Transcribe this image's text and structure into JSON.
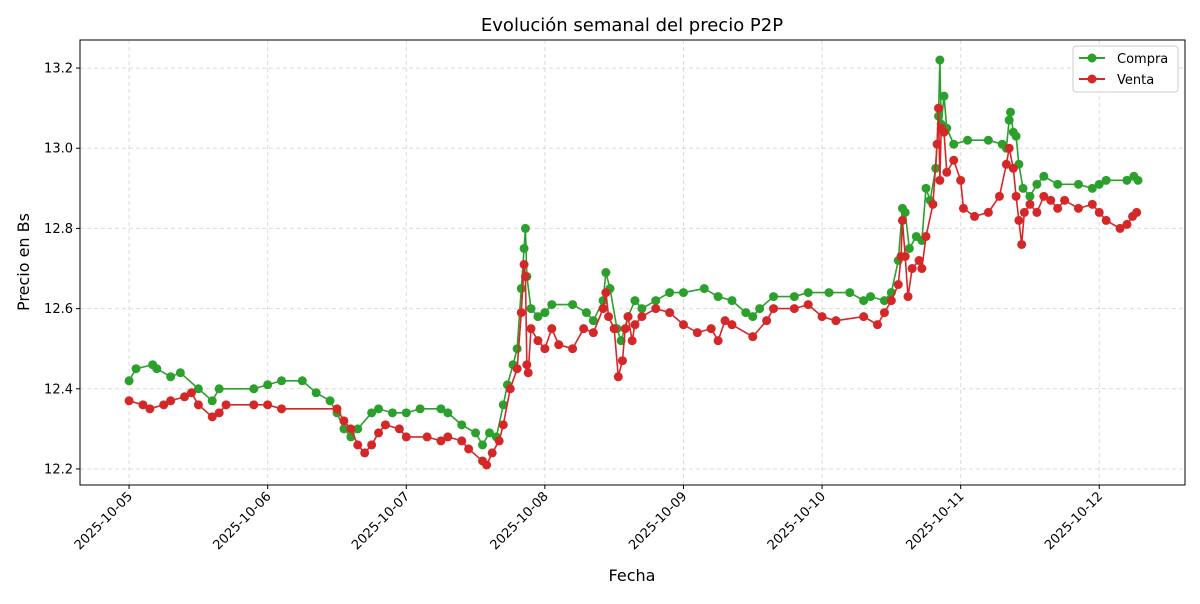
{
  "chart_data": {
    "type": "line",
    "title": "Evolución semanal del precio P2P",
    "xlabel": "Fecha",
    "ylabel": "Precio en Bs",
    "xlim": [
      "2025-10-04T15:30",
      "2025-10-12T14:51"
    ],
    "ylim": [
      12.16,
      13.27
    ],
    "x_ticks": [
      "2025-10-05",
      "2025-10-06",
      "2025-10-07",
      "2025-10-08",
      "2025-10-09",
      "2025-10-10",
      "2025-10-11",
      "2025-10-12"
    ],
    "y_ticks": [
      "12.2",
      "12.4",
      "12.6",
      "12.8",
      "13.0",
      "13.2"
    ],
    "grid": true,
    "legend_position": "top-right",
    "series": [
      {
        "name": "Compra",
        "color": "#2ca02c",
        "points": [
          [
            "2025-10-05T00:00",
            12.42
          ],
          [
            "2025-10-05T01:12",
            12.45
          ],
          [
            "2025-10-05T04:05",
            12.46
          ],
          [
            "2025-10-05T04:48",
            12.45
          ],
          [
            "2025-10-05T07:12",
            12.43
          ],
          [
            "2025-10-05T08:53",
            12.44
          ],
          [
            "2025-10-05T12:00",
            12.4
          ],
          [
            "2025-10-05T14:24",
            12.37
          ],
          [
            "2025-10-05T15:36",
            12.4
          ],
          [
            "2025-10-05T21:36",
            12.4
          ],
          [
            "2025-10-06T00:00",
            12.41
          ],
          [
            "2025-10-06T02:24",
            12.42
          ],
          [
            "2025-10-06T06:00",
            12.42
          ],
          [
            "2025-10-06T08:24",
            12.39
          ],
          [
            "2025-10-06T10:48",
            12.37
          ],
          [
            "2025-10-06T12:00",
            12.34
          ],
          [
            "2025-10-06T13:12",
            12.3
          ],
          [
            "2025-10-06T14:24",
            12.28
          ],
          [
            "2025-10-06T15:36",
            12.3
          ],
          [
            "2025-10-06T18:00",
            12.34
          ],
          [
            "2025-10-06T19:12",
            12.35
          ],
          [
            "2025-10-06T21:36",
            12.34
          ],
          [
            "2025-10-07T00:00",
            12.34
          ],
          [
            "2025-10-07T02:24",
            12.35
          ],
          [
            "2025-10-07T06:00",
            12.35
          ],
          [
            "2025-10-07T07:12",
            12.34
          ],
          [
            "2025-10-07T09:36",
            12.31
          ],
          [
            "2025-10-07T12:00",
            12.29
          ],
          [
            "2025-10-07T13:12",
            12.26
          ],
          [
            "2025-10-07T14:24",
            12.29
          ],
          [
            "2025-10-07T15:36",
            12.28
          ],
          [
            "2025-10-07T16:48",
            12.36
          ],
          [
            "2025-10-07T17:31",
            12.41
          ],
          [
            "2025-10-07T18:29",
            12.46
          ],
          [
            "2025-10-07T19:12",
            12.5
          ],
          [
            "2025-10-07T19:55",
            12.65
          ],
          [
            "2025-10-07T20:24",
            12.75
          ],
          [
            "2025-10-07T20:38",
            12.8
          ],
          [
            "2025-10-07T20:53",
            12.68
          ],
          [
            "2025-10-07T21:36",
            12.6
          ],
          [
            "2025-10-07T22:48",
            12.58
          ],
          [
            "2025-10-08T00:00",
            12.59
          ],
          [
            "2025-10-08T01:12",
            12.61
          ],
          [
            "2025-10-08T04:48",
            12.61
          ],
          [
            "2025-10-08T07:12",
            12.59
          ],
          [
            "2025-10-08T08:24",
            12.57
          ],
          [
            "2025-10-08T10:05",
            12.62
          ],
          [
            "2025-10-08T10:34",
            12.69
          ],
          [
            "2025-10-08T11:17",
            12.65
          ],
          [
            "2025-10-08T12:29",
            12.55
          ],
          [
            "2025-10-08T13:12",
            12.52
          ],
          [
            "2025-10-08T14:24",
            12.58
          ],
          [
            "2025-10-08T15:36",
            12.62
          ],
          [
            "2025-10-08T16:48",
            12.6
          ],
          [
            "2025-10-08T19:12",
            12.62
          ],
          [
            "2025-10-08T21:36",
            12.64
          ],
          [
            "2025-10-09T00:00",
            12.64
          ],
          [
            "2025-10-09T03:36",
            12.65
          ],
          [
            "2025-10-09T06:00",
            12.63
          ],
          [
            "2025-10-09T08:24",
            12.62
          ],
          [
            "2025-10-09T10:48",
            12.59
          ],
          [
            "2025-10-09T12:00",
            12.58
          ],
          [
            "2025-10-09T13:12",
            12.6
          ],
          [
            "2025-10-09T15:36",
            12.63
          ],
          [
            "2025-10-09T19:12",
            12.63
          ],
          [
            "2025-10-09T21:36",
            12.64
          ],
          [
            "2025-10-10T01:12",
            12.64
          ],
          [
            "2025-10-10T04:48",
            12.64
          ],
          [
            "2025-10-10T07:12",
            12.62
          ],
          [
            "2025-10-10T08:24",
            12.63
          ],
          [
            "2025-10-10T10:48",
            12.62
          ],
          [
            "2025-10-10T12:00",
            12.64
          ],
          [
            "2025-10-10T13:12",
            12.72
          ],
          [
            "2025-10-10T13:55",
            12.85
          ],
          [
            "2025-10-10T14:24",
            12.84
          ],
          [
            "2025-10-10T15:07",
            12.75
          ],
          [
            "2025-10-10T16:19",
            12.78
          ],
          [
            "2025-10-10T17:17",
            12.77
          ],
          [
            "2025-10-10T18:00",
            12.9
          ],
          [
            "2025-10-10T18:43",
            12.87
          ],
          [
            "2025-10-10T19:41",
            12.95
          ],
          [
            "2025-10-10T20:10",
            13.08
          ],
          [
            "2025-10-10T20:24",
            13.22
          ],
          [
            "2025-10-10T20:38",
            13.06
          ],
          [
            "2025-10-10T21:07",
            13.13
          ],
          [
            "2025-10-10T21:36",
            13.05
          ],
          [
            "2025-10-10T22:48",
            13.01
          ],
          [
            "2025-10-11T01:12",
            13.02
          ],
          [
            "2025-10-11T04:48",
            13.02
          ],
          [
            "2025-10-11T07:12",
            13.01
          ],
          [
            "2025-10-11T07:55",
            13.0
          ],
          [
            "2025-10-11T08:24",
            13.07
          ],
          [
            "2025-10-11T08:38",
            13.09
          ],
          [
            "2025-10-11T09:07",
            13.04
          ],
          [
            "2025-10-11T09:36",
            13.03
          ],
          [
            "2025-10-11T10:05",
            12.96
          ],
          [
            "2025-10-11T10:48",
            12.9
          ],
          [
            "2025-10-11T12:00",
            12.88
          ],
          [
            "2025-10-11T13:12",
            12.91
          ],
          [
            "2025-10-11T14:24",
            12.93
          ],
          [
            "2025-10-11T16:48",
            12.91
          ],
          [
            "2025-10-11T20:24",
            12.91
          ],
          [
            "2025-10-11T22:48",
            12.9
          ],
          [
            "2025-10-12T00:00",
            12.91
          ],
          [
            "2025-10-12T01:12",
            12.92
          ],
          [
            "2025-10-12T04:48",
            12.92
          ],
          [
            "2025-10-12T06:00",
            12.93
          ],
          [
            "2025-10-12T06:43",
            12.92
          ]
        ]
      },
      {
        "name": "Venta",
        "color": "#d62728",
        "points": [
          [
            "2025-10-05T00:00",
            12.37
          ],
          [
            "2025-10-05T02:24",
            12.36
          ],
          [
            "2025-10-05T03:36",
            12.35
          ],
          [
            "2025-10-05T06:00",
            12.36
          ],
          [
            "2025-10-05T07:12",
            12.37
          ],
          [
            "2025-10-05T09:36",
            12.38
          ],
          [
            "2025-10-05T10:48",
            12.39
          ],
          [
            "2025-10-05T12:00",
            12.36
          ],
          [
            "2025-10-05T14:24",
            12.33
          ],
          [
            "2025-10-05T15:36",
            12.34
          ],
          [
            "2025-10-05T16:48",
            12.36
          ],
          [
            "2025-10-05T21:36",
            12.36
          ],
          [
            "2025-10-06T00:00",
            12.36
          ],
          [
            "2025-10-06T02:24",
            12.35
          ],
          [
            "2025-10-06T12:00",
            12.35
          ],
          [
            "2025-10-06T13:12",
            12.32
          ],
          [
            "2025-10-06T14:24",
            12.3
          ],
          [
            "2025-10-06T15:36",
            12.26
          ],
          [
            "2025-10-06T16:48",
            12.24
          ],
          [
            "2025-10-06T18:00",
            12.26
          ],
          [
            "2025-10-06T19:12",
            12.29
          ],
          [
            "2025-10-06T20:24",
            12.31
          ],
          [
            "2025-10-06T22:48",
            12.3
          ],
          [
            "2025-10-07T00:00",
            12.28
          ],
          [
            "2025-10-07T03:36",
            12.28
          ],
          [
            "2025-10-07T06:00",
            12.27
          ],
          [
            "2025-10-07T07:12",
            12.28
          ],
          [
            "2025-10-07T09:36",
            12.27
          ],
          [
            "2025-10-07T10:48",
            12.25
          ],
          [
            "2025-10-07T13:12",
            12.22
          ],
          [
            "2025-10-07T13:55",
            12.21
          ],
          [
            "2025-10-07T14:53",
            12.24
          ],
          [
            "2025-10-07T16:05",
            12.27
          ],
          [
            "2025-10-07T16:48",
            12.31
          ],
          [
            "2025-10-07T18:00",
            12.4
          ],
          [
            "2025-10-07T19:12",
            12.45
          ],
          [
            "2025-10-07T19:55",
            12.59
          ],
          [
            "2025-10-07T20:24",
            12.71
          ],
          [
            "2025-10-07T20:38",
            12.68
          ],
          [
            "2025-10-07T20:53",
            12.46
          ],
          [
            "2025-10-07T21:07",
            12.44
          ],
          [
            "2025-10-07T21:36",
            12.55
          ],
          [
            "2025-10-07T22:48",
            12.52
          ],
          [
            "2025-10-08T00:00",
            12.5
          ],
          [
            "2025-10-08T01:12",
            12.55
          ],
          [
            "2025-10-08T02:24",
            12.51
          ],
          [
            "2025-10-08T04:48",
            12.5
          ],
          [
            "2025-10-08T06:43",
            12.55
          ],
          [
            "2025-10-08T08:24",
            12.54
          ],
          [
            "2025-10-08T10:05",
            12.6
          ],
          [
            "2025-10-08T10:34",
            12.64
          ],
          [
            "2025-10-08T11:02",
            12.58
          ],
          [
            "2025-10-08T12:00",
            12.55
          ],
          [
            "2025-10-08T12:43",
            12.43
          ],
          [
            "2025-10-08T13:26",
            12.47
          ],
          [
            "2025-10-08T13:55",
            12.55
          ],
          [
            "2025-10-08T14:24",
            12.58
          ],
          [
            "2025-10-08T15:07",
            12.52
          ],
          [
            "2025-10-08T15:36",
            12.56
          ],
          [
            "2025-10-08T16:48",
            12.58
          ],
          [
            "2025-10-08T19:12",
            12.6
          ],
          [
            "2025-10-08T21:36",
            12.59
          ],
          [
            "2025-10-09T00:00",
            12.56
          ],
          [
            "2025-10-09T02:24",
            12.54
          ],
          [
            "2025-10-09T04:48",
            12.55
          ],
          [
            "2025-10-09T06:00",
            12.52
          ],
          [
            "2025-10-09T07:12",
            12.57
          ],
          [
            "2025-10-09T08:24",
            12.56
          ],
          [
            "2025-10-09T12:00",
            12.53
          ],
          [
            "2025-10-09T14:24",
            12.57
          ],
          [
            "2025-10-09T15:36",
            12.6
          ],
          [
            "2025-10-09T19:12",
            12.6
          ],
          [
            "2025-10-09T21:36",
            12.61
          ],
          [
            "2025-10-10T00:00",
            12.58
          ],
          [
            "2025-10-10T02:24",
            12.57
          ],
          [
            "2025-10-10T07:12",
            12.58
          ],
          [
            "2025-10-10T09:36",
            12.56
          ],
          [
            "2025-10-10T10:48",
            12.59
          ],
          [
            "2025-10-10T12:00",
            12.62
          ],
          [
            "2025-10-10T13:12",
            12.66
          ],
          [
            "2025-10-10T13:41",
            12.73
          ],
          [
            "2025-10-10T13:55",
            12.82
          ],
          [
            "2025-10-10T14:24",
            12.73
          ],
          [
            "2025-10-10T14:53",
            12.63
          ],
          [
            "2025-10-10T15:36",
            12.7
          ],
          [
            "2025-10-10T16:48",
            12.72
          ],
          [
            "2025-10-10T17:17",
            12.7
          ],
          [
            "2025-10-10T18:00",
            12.78
          ],
          [
            "2025-10-10T19:12",
            12.86
          ],
          [
            "2025-10-10T19:55",
            13.01
          ],
          [
            "2025-10-10T20:10",
            13.1
          ],
          [
            "2025-10-10T20:24",
            12.92
          ],
          [
            "2025-10-10T20:38",
            13.05
          ],
          [
            "2025-10-10T21:07",
            13.04
          ],
          [
            "2025-10-10T21:36",
            12.94
          ],
          [
            "2025-10-10T22:48",
            12.97
          ],
          [
            "2025-10-11T00:00",
            12.92
          ],
          [
            "2025-10-11T00:29",
            12.85
          ],
          [
            "2025-10-11T02:24",
            12.83
          ],
          [
            "2025-10-11T04:48",
            12.84
          ],
          [
            "2025-10-11T06:43",
            12.88
          ],
          [
            "2025-10-11T07:55",
            12.96
          ],
          [
            "2025-10-11T08:24",
            13.0
          ],
          [
            "2025-10-11T09:07",
            12.95
          ],
          [
            "2025-10-11T09:36",
            12.88
          ],
          [
            "2025-10-11T10:05",
            12.82
          ],
          [
            "2025-10-11T10:34",
            12.76
          ],
          [
            "2025-10-11T11:02",
            12.84
          ],
          [
            "2025-10-11T12:00",
            12.86
          ],
          [
            "2025-10-11T13:12",
            12.84
          ],
          [
            "2025-10-11T14:24",
            12.88
          ],
          [
            "2025-10-11T15:36",
            12.87
          ],
          [
            "2025-10-11T16:48",
            12.85
          ],
          [
            "2025-10-11T18:00",
            12.87
          ],
          [
            "2025-10-11T20:24",
            12.85
          ],
          [
            "2025-10-11T22:48",
            12.86
          ],
          [
            "2025-10-12T00:00",
            12.84
          ],
          [
            "2025-10-12T01:12",
            12.82
          ],
          [
            "2025-10-12T03:36",
            12.8
          ],
          [
            "2025-10-12T04:48",
            12.81
          ],
          [
            "2025-10-12T05:46",
            12.83
          ],
          [
            "2025-10-12T06:29",
            12.84
          ]
        ]
      }
    ]
  }
}
